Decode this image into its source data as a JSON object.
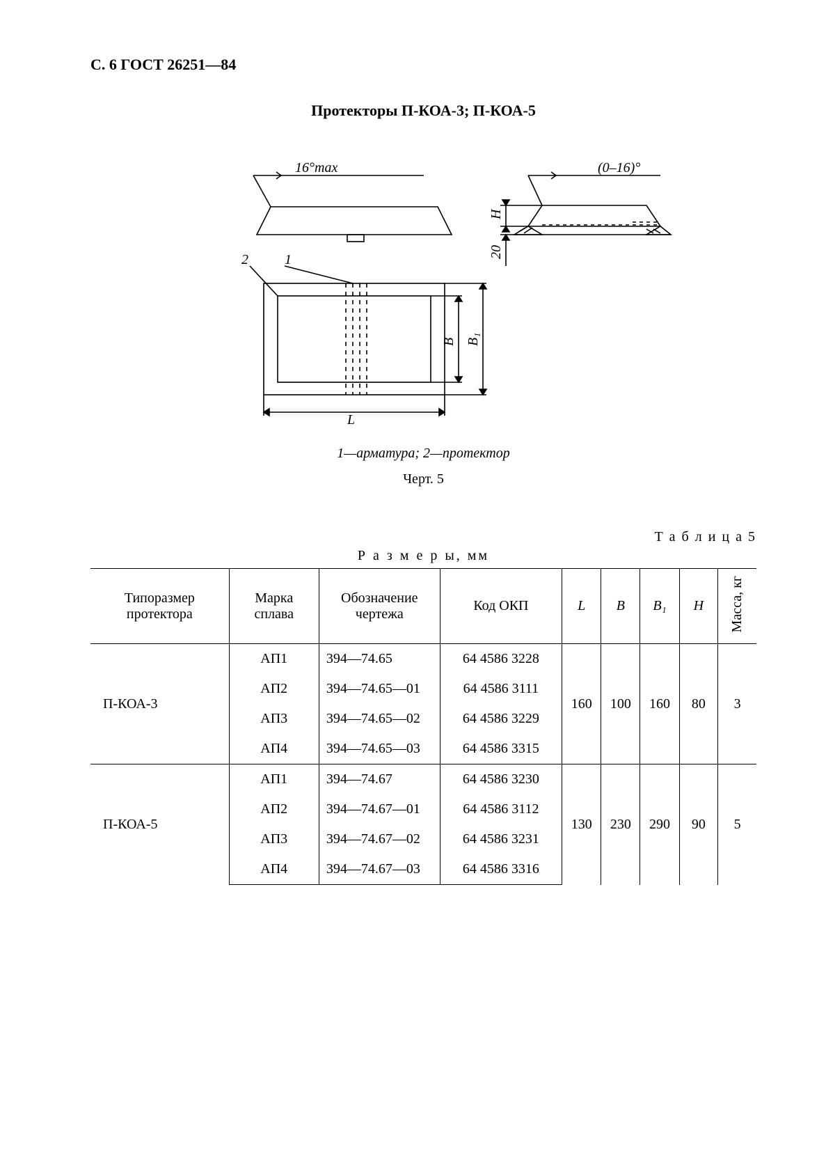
{
  "page_header": "С. 6 ГОСТ 26251—84",
  "title": "Протекторы П-КОА-3; П-КОА-5",
  "figure": {
    "angle_label_left": "16°max",
    "angle_label_right": "(0–16)°",
    "dim_H": "H",
    "dim_20": "20",
    "dim_L": "L",
    "dim_B": "B",
    "dim_B1": "B₁",
    "callout_1": "1",
    "callout_2": "2",
    "legend": "1—арматура; 2—протектор",
    "caption": "Черт. 5",
    "stroke": "#000000",
    "stroke_width": 1.6
  },
  "table": {
    "label": "Т а б л и ц а 5",
    "units": "Р а з м е р ы,  мм",
    "columns": [
      "Типоразмер протектора",
      "Марка сплава",
      "Обозначение чертежа",
      "Код ОКП",
      "L",
      "B",
      "B₁",
      "H",
      "Масса, кг"
    ],
    "groups": [
      {
        "typesize": "П-КОА-3",
        "L": "160",
        "B": "100",
        "B1": "160",
        "H": "80",
        "mass": "3",
        "rows": [
          {
            "alloy": "АП1",
            "drawing": "394—74.65",
            "okp": "64 4586 3228"
          },
          {
            "alloy": "АП2",
            "drawing": "394—74.65—01",
            "okp": "64 4586 3111"
          },
          {
            "alloy": "АП3",
            "drawing": "394—74.65—02",
            "okp": "64 4586 3229"
          },
          {
            "alloy": "АП4",
            "drawing": "394—74.65—03",
            "okp": "64 4586 3315"
          }
        ]
      },
      {
        "typesize": "П-КОА-5",
        "L": "130",
        "B": "230",
        "B1": "290",
        "H": "90",
        "mass": "5",
        "rows": [
          {
            "alloy": "АП1",
            "drawing": "394—74.67",
            "okp": "64 4586 3230"
          },
          {
            "alloy": "АП2",
            "drawing": "394—74.67—01",
            "okp": "64 4586 3112"
          },
          {
            "alloy": "АП3",
            "drawing": "394—74.67—02",
            "okp": "64 4586 3231"
          },
          {
            "alloy": "АП4",
            "drawing": "394—74.67—03",
            "okp": "64 4586 3316"
          }
        ]
      }
    ]
  }
}
